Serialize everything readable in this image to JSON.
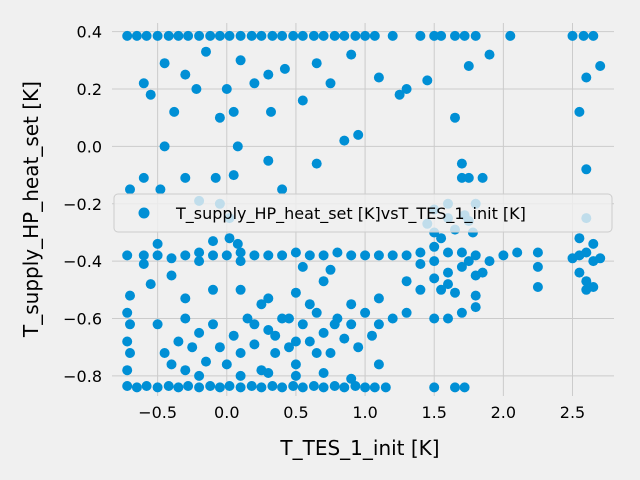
{
  "chart_data": {
    "type": "scatter",
    "xlabel": "T_TES_1_init [K]",
    "ylabel": "T_supply_HP_heat_set [K]",
    "xlim": [
      -0.83,
      2.8
    ],
    "ylim": [
      -0.87,
      0.43
    ],
    "xticks": [
      -0.5,
      0.0,
      0.5,
      1.0,
      1.5,
      2.0,
      2.5
    ],
    "xtick_labels": [
      "−0.5",
      "0.0",
      "0.5",
      "1.0",
      "1.5",
      "2.0",
      "2.5"
    ],
    "yticks": [
      -0.8,
      -0.6,
      -0.4,
      -0.2,
      0.0,
      0.2,
      0.4
    ],
    "ytick_labels": [
      "−0.8",
      "−0.6",
      "−0.4",
      "−0.2",
      "0.0",
      "0.2",
      "0.4"
    ],
    "grid": true,
    "legend_position": "center-right",
    "marker_color": "#008fd5",
    "background_color": "#f0f0f0",
    "grid_color": "#cbcbcb",
    "series": [
      {
        "name": "T_supply_HP_heat_set [K]vsT_TES_1_init [K]",
        "points": [
          [
            -0.72,
            0.385
          ],
          [
            -0.65,
            0.385
          ],
          [
            -0.58,
            0.385
          ],
          [
            -0.5,
            0.385
          ],
          [
            -0.42,
            0.385
          ],
          [
            -0.35,
            0.385
          ],
          [
            -0.28,
            0.385
          ],
          [
            -0.2,
            0.385
          ],
          [
            -0.12,
            0.385
          ],
          [
            -0.05,
            0.385
          ],
          [
            0.02,
            0.385
          ],
          [
            0.1,
            0.385
          ],
          [
            0.18,
            0.385
          ],
          [
            0.25,
            0.385
          ],
          [
            0.33,
            0.385
          ],
          [
            0.4,
            0.385
          ],
          [
            0.48,
            0.385
          ],
          [
            0.55,
            0.385
          ],
          [
            0.63,
            0.385
          ],
          [
            0.7,
            0.385
          ],
          [
            0.78,
            0.385
          ],
          [
            0.85,
            0.385
          ],
          [
            0.93,
            0.385
          ],
          [
            1.0,
            0.385
          ],
          [
            1.07,
            0.385
          ],
          [
            1.2,
            0.385
          ],
          [
            1.4,
            0.385
          ],
          [
            1.5,
            0.385
          ],
          [
            1.55,
            0.385
          ],
          [
            1.65,
            0.385
          ],
          [
            1.72,
            0.385
          ],
          [
            1.8,
            0.385
          ],
          [
            2.05,
            0.385
          ],
          [
            2.5,
            0.385
          ],
          [
            2.58,
            0.385
          ],
          [
            2.65,
            0.385
          ],
          [
            -0.6,
            0.22
          ],
          [
            -0.55,
            0.18
          ],
          [
            -0.45,
            0.29
          ],
          [
            -0.38,
            0.12
          ],
          [
            -0.3,
            0.25
          ],
          [
            -0.22,
            0.2
          ],
          [
            -0.15,
            0.33
          ],
          [
            -0.05,
            0.1
          ],
          [
            0.05,
            0.12
          ],
          [
            0.1,
            0.3
          ],
          [
            0.2,
            0.22
          ],
          [
            0.3,
            0.25
          ],
          [
            0.42,
            0.27
          ],
          [
            0.55,
            0.16
          ],
          [
            0.65,
            0.29
          ],
          [
            0.75,
            0.22
          ],
          [
            0.9,
            0.32
          ],
          [
            1.1,
            0.24
          ],
          [
            1.3,
            0.2
          ],
          [
            1.45,
            0.23
          ],
          [
            1.65,
            0.1
          ],
          [
            1.75,
            0.28
          ],
          [
            1.9,
            0.32
          ],
          [
            2.55,
            0.12
          ],
          [
            2.6,
            0.24
          ],
          [
            2.7,
            0.28
          ],
          [
            0.32,
            0.12
          ],
          [
            0.0,
            0.2
          ],
          [
            -0.7,
            -0.15
          ],
          [
            -0.6,
            -0.11
          ],
          [
            -0.45,
            0.0
          ],
          [
            -0.48,
            -0.15
          ],
          [
            -0.3,
            -0.11
          ],
          [
            -0.2,
            -0.19
          ],
          [
            -0.08,
            -0.11
          ],
          [
            0.05,
            -0.1
          ],
          [
            0.08,
            0.0
          ],
          [
            0.3,
            -0.05
          ],
          [
            0.4,
            -0.15
          ],
          [
            0.65,
            -0.06
          ],
          [
            0.85,
            0.02
          ],
          [
            0.95,
            0.04
          ],
          [
            1.25,
            0.18
          ],
          [
            1.7,
            -0.06
          ],
          [
            2.6,
            -0.08
          ],
          [
            -0.05,
            -0.2
          ],
          [
            0.02,
            -0.25
          ],
          [
            1.6,
            -0.2
          ],
          [
            1.7,
            -0.11
          ],
          [
            1.75,
            -0.11
          ],
          [
            1.85,
            -0.11
          ],
          [
            1.8,
            -0.2
          ],
          [
            1.5,
            -0.22
          ],
          [
            1.45,
            -0.27
          ],
          [
            1.5,
            -0.3
          ],
          [
            1.55,
            -0.32
          ],
          [
            1.6,
            -0.25
          ],
          [
            1.65,
            -0.29
          ],
          [
            1.72,
            -0.24
          ],
          [
            1.75,
            -0.26
          ],
          [
            1.78,
            -0.3
          ],
          [
            2.6,
            -0.25
          ],
          [
            2.55,
            -0.32
          ],
          [
            2.65,
            -0.34
          ],
          [
            -0.5,
            -0.34
          ],
          [
            -0.1,
            -0.33
          ],
          [
            0.02,
            -0.32
          ],
          [
            0.08,
            -0.34
          ],
          [
            -0.72,
            -0.38
          ],
          [
            -0.6,
            -0.38
          ],
          [
            -0.5,
            -0.38
          ],
          [
            -0.4,
            -0.39
          ],
          [
            -0.3,
            -0.38
          ],
          [
            -0.2,
            -0.37
          ],
          [
            -0.1,
            -0.38
          ],
          [
            0.0,
            -0.38
          ],
          [
            0.1,
            -0.37
          ],
          [
            0.2,
            -0.38
          ],
          [
            0.3,
            -0.38
          ],
          [
            0.4,
            -0.38
          ],
          [
            0.5,
            -0.37
          ],
          [
            0.6,
            -0.38
          ],
          [
            0.7,
            -0.38
          ],
          [
            0.8,
            -0.37
          ],
          [
            0.9,
            -0.38
          ],
          [
            1.0,
            -0.38
          ],
          [
            1.1,
            -0.38
          ],
          [
            1.2,
            -0.38
          ],
          [
            1.3,
            -0.38
          ],
          [
            1.4,
            -0.37
          ],
          [
            1.5,
            -0.35
          ],
          [
            1.6,
            -0.37
          ],
          [
            1.7,
            -0.37
          ],
          [
            1.8,
            -0.38
          ],
          [
            1.9,
            -0.4
          ],
          [
            2.0,
            -0.38
          ],
          [
            2.1,
            -0.37
          ],
          [
            2.25,
            -0.37
          ],
          [
            2.5,
            -0.39
          ],
          [
            2.55,
            -0.38
          ],
          [
            2.6,
            -0.37
          ],
          [
            2.65,
            -0.4
          ],
          [
            2.7,
            -0.39
          ],
          [
            -0.6,
            -0.41
          ],
          [
            -0.2,
            -0.4
          ],
          [
            0.1,
            -0.4
          ],
          [
            0.55,
            -0.42
          ],
          [
            0.75,
            -0.43
          ],
          [
            1.4,
            -0.41
          ],
          [
            1.5,
            -0.4
          ],
          [
            1.6,
            -0.44
          ],
          [
            1.7,
            -0.42
          ],
          [
            2.25,
            -0.42
          ],
          [
            2.55,
            -0.44
          ],
          [
            2.6,
            -0.47
          ],
          [
            2.65,
            -0.49
          ],
          [
            1.5,
            -0.46
          ],
          [
            1.6,
            -0.48
          ],
          [
            1.8,
            -0.45
          ],
          [
            1.85,
            -0.44
          ],
          [
            1.75,
            -0.4
          ],
          [
            -0.7,
            -0.52
          ],
          [
            -0.55,
            -0.48
          ],
          [
            -0.4,
            -0.45
          ],
          [
            -0.3,
            -0.53
          ],
          [
            -0.1,
            -0.5
          ],
          [
            0.1,
            -0.5
          ],
          [
            0.3,
            -0.53
          ],
          [
            0.5,
            -0.51
          ],
          [
            0.7,
            -0.47
          ],
          [
            0.9,
            -0.55
          ],
          [
            1.1,
            -0.53
          ],
          [
            1.3,
            -0.47
          ],
          [
            1.4,
            -0.5
          ],
          [
            1.55,
            -0.5
          ],
          [
            1.65,
            -0.51
          ],
          [
            1.8,
            -0.52
          ],
          [
            2.25,
            -0.49
          ],
          [
            2.6,
            -0.5
          ],
          [
            -0.72,
            -0.58
          ],
          [
            -0.7,
            -0.62
          ],
          [
            -0.72,
            -0.68
          ],
          [
            -0.7,
            -0.72
          ],
          [
            -0.72,
            -0.78
          ],
          [
            -0.5,
            -0.62
          ],
          [
            -0.45,
            -0.72
          ],
          [
            -0.4,
            -0.76
          ],
          [
            -0.35,
            -0.68
          ],
          [
            -0.3,
            -0.6
          ],
          [
            -0.25,
            -0.7
          ],
          [
            -0.2,
            -0.65
          ],
          [
            -0.15,
            -0.75
          ],
          [
            -0.1,
            -0.62
          ],
          [
            -0.05,
            -0.7
          ],
          [
            0.0,
            -0.76
          ],
          [
            0.05,
            -0.66
          ],
          [
            0.1,
            -0.72
          ],
          [
            0.15,
            -0.6
          ],
          [
            0.2,
            -0.69
          ],
          [
            0.25,
            -0.78
          ],
          [
            0.3,
            -0.64
          ],
          [
            0.35,
            -0.72
          ],
          [
            0.4,
            -0.6
          ],
          [
            0.45,
            -0.7
          ],
          [
            0.5,
            -0.76
          ],
          [
            0.55,
            -0.62
          ],
          [
            0.6,
            -0.68
          ],
          [
            0.65,
            -0.58
          ],
          [
            0.7,
            -0.65
          ],
          [
            0.75,
            -0.72
          ],
          [
            0.8,
            -0.6
          ],
          [
            0.85,
            -0.67
          ],
          [
            0.9,
            -0.62
          ],
          [
            1.0,
            -0.58
          ],
          [
            1.1,
            -0.62
          ],
          [
            1.2,
            -0.6
          ],
          [
            1.3,
            -0.58
          ],
          [
            1.5,
            -0.6
          ],
          [
            1.6,
            -0.6
          ],
          [
            1.7,
            -0.58
          ],
          [
            1.8,
            -0.56
          ],
          [
            -0.3,
            -0.78
          ],
          [
            -0.2,
            -0.8
          ],
          [
            0.1,
            -0.8
          ],
          [
            0.3,
            -0.79
          ],
          [
            0.5,
            -0.8
          ],
          [
            0.7,
            -0.79
          ],
          [
            0.9,
            -0.81
          ],
          [
            1.1,
            -0.76
          ],
          [
            0.25,
            -0.55
          ],
          [
            0.45,
            -0.6
          ],
          [
            0.6,
            -0.55
          ],
          [
            0.2,
            -0.62
          ],
          [
            0.35,
            -0.66
          ],
          [
            0.5,
            -0.68
          ],
          [
            0.65,
            -0.72
          ],
          [
            0.78,
            -0.62
          ],
          [
            0.95,
            -0.7
          ],
          [
            1.05,
            -0.66
          ],
          [
            -0.72,
            -0.835
          ],
          [
            -0.65,
            -0.84
          ],
          [
            -0.58,
            -0.835
          ],
          [
            -0.5,
            -0.84
          ],
          [
            -0.42,
            -0.835
          ],
          [
            -0.35,
            -0.84
          ],
          [
            -0.28,
            -0.835
          ],
          [
            -0.2,
            -0.84
          ],
          [
            -0.12,
            -0.835
          ],
          [
            -0.05,
            -0.84
          ],
          [
            0.02,
            -0.835
          ],
          [
            0.1,
            -0.84
          ],
          [
            0.18,
            -0.835
          ],
          [
            0.25,
            -0.84
          ],
          [
            0.33,
            -0.835
          ],
          [
            0.4,
            -0.84
          ],
          [
            0.48,
            -0.835
          ],
          [
            0.55,
            -0.84
          ],
          [
            0.63,
            -0.835
          ],
          [
            0.7,
            -0.84
          ],
          [
            0.78,
            -0.835
          ],
          [
            0.85,
            -0.84
          ],
          [
            0.93,
            -0.835
          ],
          [
            1.0,
            -0.84
          ],
          [
            1.07,
            -0.84
          ],
          [
            1.15,
            -0.84
          ],
          [
            1.5,
            -0.84
          ],
          [
            1.65,
            -0.84
          ],
          [
            1.72,
            -0.84
          ]
        ]
      }
    ]
  }
}
